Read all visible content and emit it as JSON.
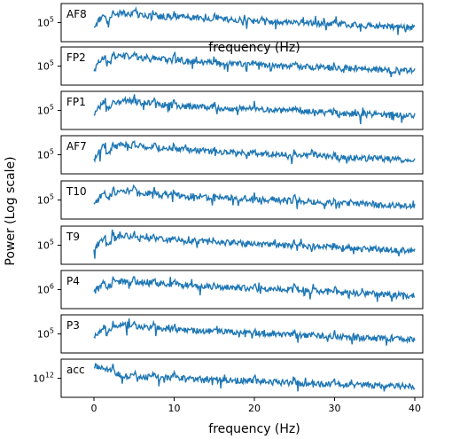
{
  "chart_data": {
    "type": "line",
    "layout": "stacked",
    "ylabel": "Power (Log scale)",
    "xlabel": "frequency (Hz)",
    "xlim": [
      0,
      40
    ],
    "xticks": [
      "0",
      "10",
      "20",
      "30",
      "40"
    ],
    "ghost_xlabel": "frequency (Hz)",
    "line_color": "#1f77b4",
    "panels": [
      {
        "name": "AF8",
        "ytick_base": "10",
        "ytick_exp": "5",
        "values": [
          3.5,
          7.5,
          6.8,
          6.5,
          6.1,
          5.8,
          5.5,
          5.2,
          4.9,
          4.6,
          4.3,
          4.0,
          3.8
        ]
      },
      {
        "name": "FP2",
        "ytick_base": "10",
        "ytick_exp": "5",
        "values": [
          3.6,
          7.8,
          6.9,
          6.4,
          6.0,
          5.7,
          5.4,
          5.1,
          4.8,
          4.5,
          4.2,
          4.0,
          3.7
        ]
      },
      {
        "name": "FP1",
        "ytick_base": "10",
        "ytick_exp": "5",
        "values": [
          3.2,
          7.6,
          6.9,
          6.3,
          5.9,
          5.6,
          5.3,
          5.0,
          4.7,
          4.4,
          4.1,
          3.8,
          3.6
        ]
      },
      {
        "name": "AF7",
        "ytick_base": "10",
        "ytick_exp": "5",
        "values": [
          3.4,
          7.7,
          7.0,
          6.5,
          6.0,
          5.7,
          5.3,
          5.0,
          4.7,
          4.4,
          4.1,
          3.9,
          3.6
        ]
      },
      {
        "name": "T10",
        "ytick_base": "10",
        "ytick_exp": "5",
        "values": [
          3.3,
          7.5,
          6.8,
          6.3,
          5.9,
          5.6,
          5.2,
          4.9,
          4.6,
          4.3,
          4.0,
          3.8,
          3.5
        ]
      },
      {
        "name": "T9",
        "ytick_base": "10",
        "ytick_exp": "5",
        "values": [
          3.2,
          7.6,
          6.9,
          6.4,
          6.0,
          5.7,
          5.3,
          5.0,
          4.7,
          4.4,
          4.1,
          3.8,
          3.5
        ]
      },
      {
        "name": "P4",
        "ytick_base": "10",
        "ytick_exp": "6",
        "values": [
          3.8,
          7.2,
          6.7,
          6.3,
          5.9,
          5.6,
          5.3,
          5.0,
          4.7,
          4.3,
          4.0,
          3.7,
          3.4
        ]
      },
      {
        "name": "P3",
        "ytick_base": "10",
        "ytick_exp": "5",
        "values": [
          3.5,
          7.3,
          6.7,
          6.2,
          5.8,
          5.5,
          5.2,
          4.9,
          4.6,
          4.3,
          4.0,
          3.7,
          3.4
        ]
      },
      {
        "name": "acc",
        "ytick_base": "10",
        "ytick_exp": "12",
        "values": [
          8.5,
          5.8,
          5.4,
          5.1,
          4.8,
          4.5,
          4.2,
          3.9,
          3.6,
          3.4,
          3.2,
          3.0,
          2.8
        ]
      }
    ]
  }
}
